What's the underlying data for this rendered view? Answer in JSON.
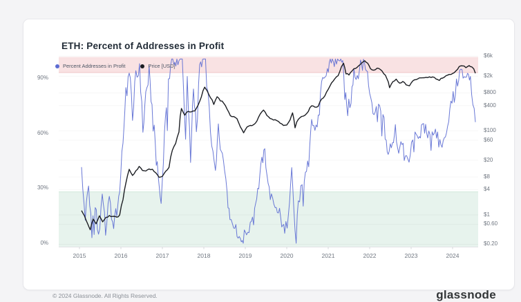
{
  "card": {
    "title": "ETH: Percent of Addresses in Profit"
  },
  "legend": [
    {
      "label": "Percent Addresses in Profit",
      "color": "#5c6cd2"
    },
    {
      "label": "Price [USD]",
      "color": "#1b1d22"
    }
  ],
  "footer": {
    "copyright": "© 2024 Glassnode. All Rights Reserved.",
    "brand": "glassnode"
  },
  "colors": {
    "profit_line": "#5c6cd2",
    "price_line": "#1b1d22",
    "overbought_band": "#f9e2e3",
    "overbought_edge": "#efc6c7",
    "oversold_band": "#e7f3ed",
    "oversold_edge": "#d2e8db"
  },
  "chart_data": {
    "type": "line",
    "title": "ETH: Percent of Addresses in Profit",
    "x_axis": {
      "ticks": [
        2015,
        2016,
        2017,
        2018,
        2019,
        2020,
        2021,
        2022,
        2023,
        2024
      ],
      "range": [
        2014.6,
        2024.62
      ]
    },
    "y_left": {
      "label": "Percent Addresses in Profit",
      "ticks": [
        {
          "value": 0,
          "label": "0%"
        },
        {
          "value": 30,
          "label": "30%"
        },
        {
          "value": 60,
          "label": "60%"
        },
        {
          "value": 90,
          "label": "90%"
        }
      ],
      "range": [
        -2,
        101
      ]
    },
    "y_right": {
      "label": "Price [USD]",
      "scale": "log",
      "ticks": [
        {
          "value": 6000,
          "label": "$6k"
        },
        {
          "value": 2000,
          "label": "$2k"
        },
        {
          "value": 800,
          "label": "$800"
        },
        {
          "value": 400,
          "label": "$400"
        },
        {
          "value": 100,
          "label": "$100"
        },
        {
          "value": 60,
          "label": "$60"
        },
        {
          "value": 20,
          "label": "$20"
        },
        {
          "value": 8,
          "label": "$8"
        },
        {
          "value": 4,
          "label": "$4"
        },
        {
          "value": 1,
          "label": "$1"
        },
        {
          "value": 0.6,
          "label": "$0.60"
        },
        {
          "value": 0.2,
          "label": "$0.20"
        }
      ]
    },
    "bands": [
      {
        "name": "high-profit-zone",
        "axis": "left",
        "from": 93,
        "to": 101.5,
        "color": "#f9e2e3",
        "edge": "#efc6c7",
        "edge_at": 93
      },
      {
        "name": "low-profit-zone",
        "axis": "left",
        "from": -2,
        "to": 28,
        "color": "#e7f3ed",
        "edge": "#d2e8db",
        "edge_at": 28
      }
    ],
    "series": [
      {
        "name": "Percent Addresses in Profit",
        "color": "#5c6cd2",
        "axis": "left",
        "scale": "pct",
        "width": 1,
        "jitter": 7,
        "step": 1.6,
        "points": [
          [
            2015.05,
            38
          ],
          [
            2015.14,
            12
          ],
          [
            2015.22,
            30
          ],
          [
            2015.3,
            8
          ],
          [
            2015.38,
            22
          ],
          [
            2015.46,
            4
          ],
          [
            2015.55,
            24
          ],
          [
            2015.63,
            6
          ],
          [
            2015.72,
            26
          ],
          [
            2015.8,
            10
          ],
          [
            2015.9,
            18
          ],
          [
            2015.97,
            30
          ],
          [
            2016.05,
            55
          ],
          [
            2016.12,
            82
          ],
          [
            2016.2,
            97
          ],
          [
            2016.28,
            68
          ],
          [
            2016.36,
            90
          ],
          [
            2016.45,
            97
          ],
          [
            2016.53,
            60
          ],
          [
            2016.6,
            80
          ],
          [
            2016.68,
            92
          ],
          [
            2016.75,
            72
          ],
          [
            2016.83,
            55
          ],
          [
            2016.9,
            35
          ],
          [
            2016.97,
            22
          ],
          [
            2017.05,
            58
          ],
          [
            2017.12,
            82
          ],
          [
            2017.2,
            97
          ],
          [
            2017.3,
            99
          ],
          [
            2017.4,
            99
          ],
          [
            2017.48,
            99
          ],
          [
            2017.56,
            55
          ],
          [
            2017.6,
            92
          ],
          [
            2017.68,
            45
          ],
          [
            2017.75,
            88
          ],
          [
            2017.82,
            60
          ],
          [
            2017.9,
            95
          ],
          [
            2017.97,
            99
          ],
          [
            2018.04,
            99
          ],
          [
            2018.1,
            80
          ],
          [
            2018.16,
            60
          ],
          [
            2018.22,
            48
          ],
          [
            2018.28,
            38
          ],
          [
            2018.35,
            62
          ],
          [
            2018.42,
            52
          ],
          [
            2018.5,
            40
          ],
          [
            2018.56,
            30
          ],
          [
            2018.63,
            14
          ],
          [
            2018.72,
            10
          ],
          [
            2018.8,
            7
          ],
          [
            2018.88,
            4
          ],
          [
            2018.95,
            2
          ],
          [
            2019.03,
            8
          ],
          [
            2019.12,
            11
          ],
          [
            2019.2,
            14
          ],
          [
            2019.3,
            28
          ],
          [
            2019.4,
            45
          ],
          [
            2019.47,
            50
          ],
          [
            2019.55,
            34
          ],
          [
            2019.63,
            24
          ],
          [
            2019.72,
            21
          ],
          [
            2019.8,
            19
          ],
          [
            2019.88,
            11
          ],
          [
            2019.95,
            7
          ],
          [
            2020.04,
            16
          ],
          [
            2020.12,
            38
          ],
          [
            2020.2,
            5
          ],
          [
            2020.28,
            22
          ],
          [
            2020.37,
            29
          ],
          [
            2020.45,
            35
          ],
          [
            2020.53,
            46
          ],
          [
            2020.6,
            72
          ],
          [
            2020.68,
            60
          ],
          [
            2020.76,
            68
          ],
          [
            2020.84,
            84
          ],
          [
            2020.92,
            90
          ],
          [
            2020.98,
            94
          ],
          [
            2021.05,
            98
          ],
          [
            2021.12,
            99
          ],
          [
            2021.2,
            99
          ],
          [
            2021.28,
            100
          ],
          [
            2021.35,
            96
          ],
          [
            2021.4,
            82
          ],
          [
            2021.47,
            74
          ],
          [
            2021.55,
            80
          ],
          [
            2021.62,
            94
          ],
          [
            2021.7,
            90
          ],
          [
            2021.78,
            97
          ],
          [
            2021.85,
            99
          ],
          [
            2021.92,
            95
          ],
          [
            2022.0,
            84
          ],
          [
            2022.08,
            72
          ],
          [
            2022.16,
            78
          ],
          [
            2022.24,
            74
          ],
          [
            2022.32,
            70
          ],
          [
            2022.4,
            57
          ],
          [
            2022.47,
            46
          ],
          [
            2022.55,
            56
          ],
          [
            2022.62,
            60
          ],
          [
            2022.7,
            50
          ],
          [
            2022.78,
            56
          ],
          [
            2022.86,
            46
          ],
          [
            2022.95,
            46
          ],
          [
            2023.04,
            53
          ],
          [
            2023.12,
            56
          ],
          [
            2023.2,
            60
          ],
          [
            2023.3,
            64
          ],
          [
            2023.4,
            60
          ],
          [
            2023.48,
            62
          ],
          [
            2023.56,
            62
          ],
          [
            2023.64,
            55
          ],
          [
            2023.72,
            52
          ],
          [
            2023.8,
            57
          ],
          [
            2023.88,
            66
          ],
          [
            2023.96,
            75
          ],
          [
            2024.04,
            80
          ],
          [
            2024.12,
            90
          ],
          [
            2024.2,
            96
          ],
          [
            2024.28,
            88
          ],
          [
            2024.36,
            93
          ],
          [
            2024.43,
            90
          ],
          [
            2024.49,
            76
          ],
          [
            2024.55,
            66
          ]
        ]
      },
      {
        "name": "Price [USD]",
        "color": "#1b1d22",
        "axis": "right",
        "scale": "log",
        "width": 1.4,
        "jitter": 0.028,
        "step": 2.2,
        "points": [
          [
            2015.05,
            1.25
          ],
          [
            2015.12,
            0.95
          ],
          [
            2015.2,
            0.6
          ],
          [
            2015.26,
            0.45
          ],
          [
            2015.33,
            0.8
          ],
          [
            2015.4,
            0.62
          ],
          [
            2015.48,
            0.95
          ],
          [
            2015.56,
            0.68
          ],
          [
            2015.64,
            0.88
          ],
          [
            2015.72,
            0.95
          ],
          [
            2015.8,
            0.9
          ],
          [
            2015.9,
            0.87
          ],
          [
            2015.97,
            1.0
          ],
          [
            2016.05,
            2.3
          ],
          [
            2016.12,
            5.6
          ],
          [
            2016.2,
            11.8
          ],
          [
            2016.28,
            8.6
          ],
          [
            2016.36,
            11.2
          ],
          [
            2016.44,
            14.2
          ],
          [
            2016.52,
            11.4
          ],
          [
            2016.6,
            11.0
          ],
          [
            2016.68,
            12.6
          ],
          [
            2016.76,
            12.0
          ],
          [
            2016.84,
            10.2
          ],
          [
            2016.92,
            8.0
          ],
          [
            2017.0,
            8.2
          ],
          [
            2017.08,
            10.6
          ],
          [
            2017.16,
            14
          ],
          [
            2017.24,
            34
          ],
          [
            2017.32,
            52
          ],
          [
            2017.4,
            95
          ],
          [
            2017.46,
            340
          ],
          [
            2017.54,
            235
          ],
          [
            2017.62,
            295
          ],
          [
            2017.7,
            290
          ],
          [
            2017.78,
            305
          ],
          [
            2017.86,
            400
          ],
          [
            2017.94,
            650
          ],
          [
            2018.02,
            1100
          ],
          [
            2018.08,
            900
          ],
          [
            2018.16,
            600
          ],
          [
            2018.24,
            440
          ],
          [
            2018.32,
            660
          ],
          [
            2018.4,
            530
          ],
          [
            2018.48,
            470
          ],
          [
            2018.56,
            330
          ],
          [
            2018.64,
            230
          ],
          [
            2018.72,
            215
          ],
          [
            2018.8,
            200
          ],
          [
            2018.88,
            120
          ],
          [
            2018.96,
            90
          ],
          [
            2019.04,
            128
          ],
          [
            2019.12,
            136
          ],
          [
            2019.2,
            140
          ],
          [
            2019.28,
            170
          ],
          [
            2019.36,
            258
          ],
          [
            2019.44,
            315
          ],
          [
            2019.52,
            230
          ],
          [
            2019.6,
            198
          ],
          [
            2019.68,
            185
          ],
          [
            2019.76,
            182
          ],
          [
            2019.84,
            155
          ],
          [
            2019.92,
            134
          ],
          [
            2020.0,
            135
          ],
          [
            2020.08,
            180
          ],
          [
            2020.14,
            262
          ],
          [
            2020.2,
            120
          ],
          [
            2020.28,
            192
          ],
          [
            2020.36,
            214
          ],
          [
            2020.44,
            235
          ],
          [
            2020.52,
            290
          ],
          [
            2020.6,
            405
          ],
          [
            2020.68,
            365
          ],
          [
            2020.76,
            390
          ],
          [
            2020.84,
            565
          ],
          [
            2020.92,
            685
          ],
          [
            2021.0,
            980
          ],
          [
            2021.08,
            1350
          ],
          [
            2021.16,
            1780
          ],
          [
            2021.24,
            2100
          ],
          [
            2021.32,
            3300
          ],
          [
            2021.37,
            3950
          ],
          [
            2021.43,
            2350
          ],
          [
            2021.5,
            2150
          ],
          [
            2021.58,
            2700
          ],
          [
            2021.66,
            3200
          ],
          [
            2021.74,
            3500
          ],
          [
            2021.82,
            4300
          ],
          [
            2021.88,
            4650
          ],
          [
            2021.95,
            4000
          ],
          [
            2022.02,
            3100
          ],
          [
            2022.1,
            2850
          ],
          [
            2022.18,
            3100
          ],
          [
            2022.26,
            2950
          ],
          [
            2022.34,
            2350
          ],
          [
            2022.42,
            1750
          ],
          [
            2022.48,
            1080
          ],
          [
            2022.56,
            1450
          ],
          [
            2022.64,
            1700
          ],
          [
            2022.72,
            1380
          ],
          [
            2022.8,
            1520
          ],
          [
            2022.88,
            1230
          ],
          [
            2022.96,
            1200
          ],
          [
            2023.04,
            1580
          ],
          [
            2023.12,
            1650
          ],
          [
            2023.2,
            1800
          ],
          [
            2023.28,
            1930
          ],
          [
            2023.36,
            1850
          ],
          [
            2023.44,
            1870
          ],
          [
            2023.52,
            1930
          ],
          [
            2023.6,
            1720
          ],
          [
            2023.68,
            1650
          ],
          [
            2023.76,
            1780
          ],
          [
            2023.84,
            2050
          ],
          [
            2023.92,
            2300
          ],
          [
            2024.0,
            2320
          ],
          [
            2024.08,
            2700
          ],
          [
            2024.16,
            3300
          ],
          [
            2024.24,
            3600
          ],
          [
            2024.32,
            3250
          ],
          [
            2024.4,
            3550
          ],
          [
            2024.46,
            3400
          ],
          [
            2024.51,
            3000
          ],
          [
            2024.55,
            2350
          ]
        ]
      }
    ]
  }
}
